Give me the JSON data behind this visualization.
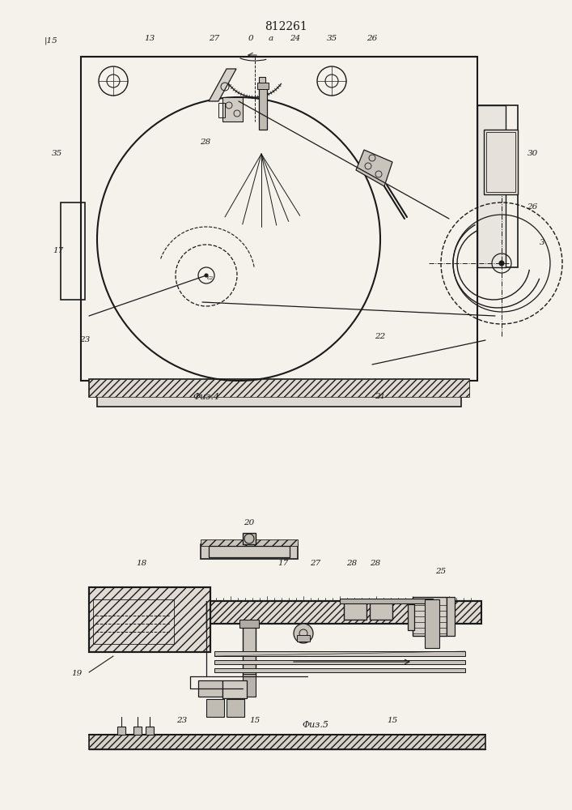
{
  "title": "812261",
  "title_fontsize": 10,
  "fig_width": 7.07,
  "fig_height": 10.0,
  "dpi": 100,
  "background": "#f5f2ec",
  "line_color": "#1a1a1a",
  "fig4_caption": "Φиз.4",
  "fig5_caption": "Φиз.5"
}
